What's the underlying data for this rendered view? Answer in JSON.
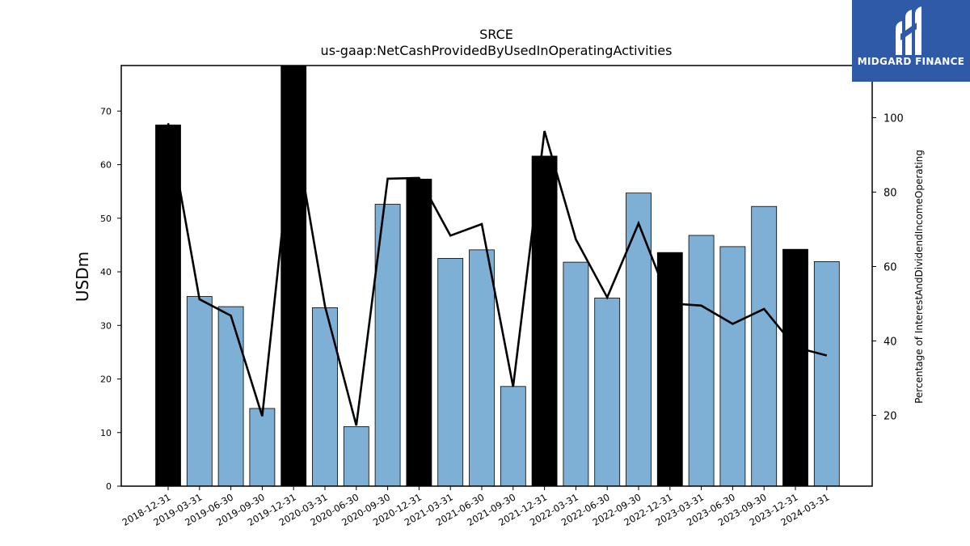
{
  "header": {
    "title": "SRCE",
    "subtitle": "us-gaap:NetCashProvidedByUsedInOperatingActivities"
  },
  "logo": {
    "text": "MIDGARD FINANCE"
  },
  "colors": {
    "bar_default": "#7eb0d5",
    "bar_highlight": "#000000",
    "line": "#000000"
  },
  "chart_data": {
    "type": "bar",
    "title": "SRCE",
    "subtitle": "us-gaap:NetCashProvidedByUsedInOperatingActivities",
    "categories": [
      "2018-12-31",
      "2019-03-31",
      "2019-06-30",
      "2019-09-30",
      "2019-12-31",
      "2020-03-31",
      "2020-06-30",
      "2020-09-30",
      "2020-12-31",
      "2021-03-31",
      "2021-06-30",
      "2021-09-30",
      "2021-12-31",
      "2022-03-31",
      "2022-06-30",
      "2022-09-30",
      "2022-12-31",
      "2023-03-31",
      "2023-06-30",
      "2023-09-30",
      "2023-12-31",
      "2024-03-31"
    ],
    "series": [
      {
        "axis": "left",
        "values": [
          67.4,
          35.4,
          33.5,
          14.5,
          79.0,
          33.3,
          11.1,
          52.6,
          57.3,
          42.5,
          44.1,
          18.6,
          61.6,
          41.8,
          35.1,
          54.7,
          43.6,
          46.8,
          44.7,
          52.2,
          44.2,
          41.9
        ],
        "highlight": [
          true,
          false,
          false,
          false,
          true,
          false,
          false,
          false,
          true,
          false,
          false,
          false,
          true,
          false,
          false,
          false,
          true,
          false,
          false,
          false,
          true,
          false
        ]
      },
      {
        "axis": "right",
        "type": "line",
        "values": [
          98.5,
          51.2,
          46.8,
          19.8,
          98.5,
          49.4,
          17.3,
          83.6,
          83.8,
          68.3,
          71.4,
          27.7,
          96.4,
          67.3,
          51.7,
          71.6,
          50.1,
          49.5,
          44.6,
          48.6,
          38.3,
          36.1
        ]
      }
    ],
    "ylabel": "USDm",
    "ylabel_right": "Percentage of InterestAndDividendIncomeOperating",
    "ylim": [
      0,
      78.5
    ],
    "ylim_right": [
      1,
      114
    ],
    "yticks": [
      0,
      10,
      20,
      30,
      40,
      50,
      60,
      70
    ],
    "yticks_right": [
      20,
      40,
      60,
      80,
      100
    ],
    "grid": false,
    "legend": "none"
  }
}
